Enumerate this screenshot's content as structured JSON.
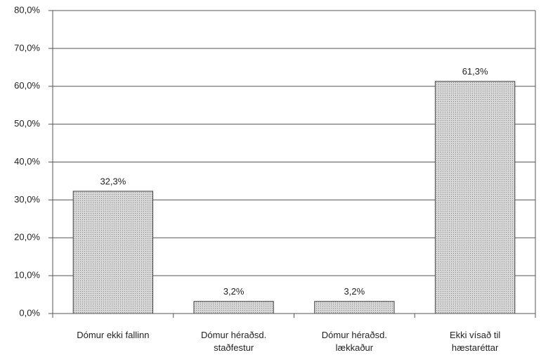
{
  "chart_data": {
    "type": "bar",
    "categories": [
      "Dómur ekki fallinn",
      "Dómur héraðsd.\nstaðfestur",
      "Dómur héraðsd.\nlækkaður",
      "Ekki vísað til\nhæstaréttar"
    ],
    "values": [
      32.3,
      3.2,
      3.2,
      61.3
    ],
    "value_labels": [
      "32,3%",
      "3,2%",
      "3,2%",
      "61,3%"
    ],
    "color": "#c8c8c8",
    "ylim": [
      0,
      80
    ],
    "yticks": [
      {
        "value": 0,
        "label": "0,0%"
      },
      {
        "value": 10,
        "label": "10,0%"
      },
      {
        "value": 20,
        "label": "20,0%"
      },
      {
        "value": 30,
        "label": "30,0%"
      },
      {
        "value": 40,
        "label": "40,0%"
      },
      {
        "value": 50,
        "label": "50,0%"
      },
      {
        "value": 60,
        "label": "60,0%"
      },
      {
        "value": 70,
        "label": "70,0%"
      },
      {
        "value": 80,
        "label": "80,0%"
      }
    ],
    "grid": true
  }
}
